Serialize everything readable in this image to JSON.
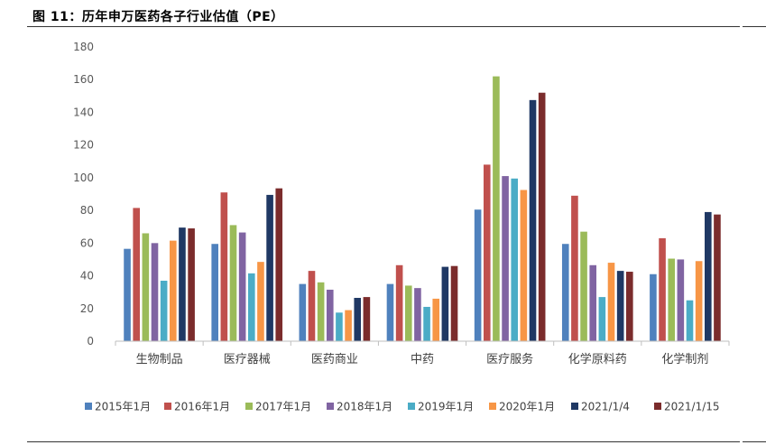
{
  "figure": {
    "title": "图 11：历年申万医药各子行业估值（PE）"
  },
  "chart_data": {
    "type": "bar",
    "title": "",
    "xlabel": "",
    "ylabel": "",
    "ylim": [
      0,
      180
    ],
    "yticks": [
      0,
      20,
      40,
      60,
      80,
      100,
      120,
      140,
      160,
      180
    ],
    "grid": false,
    "legend_position": "bottom",
    "categories": [
      "生物制品",
      "医疗器械",
      "医药商业",
      "中药",
      "医疗服务",
      "化学原料药",
      "化学制剂"
    ],
    "series": [
      {
        "name": "2015年1月",
        "color": "#4F81BD",
        "values": [
          56.5,
          59.5,
          35,
          35,
          80.5,
          59.5,
          41
        ]
      },
      {
        "name": "2016年1月",
        "color": "#C0504D",
        "values": [
          81.5,
          91,
          43,
          46.5,
          108,
          89,
          63
        ]
      },
      {
        "name": "2017年1月",
        "color": "#9BBB59",
        "values": [
          66,
          71,
          36,
          34,
          162,
          67,
          50.5
        ]
      },
      {
        "name": "2018年1月",
        "color": "#8064A2",
        "values": [
          60,
          66.5,
          31.5,
          32.5,
          101,
          46.5,
          50
        ]
      },
      {
        "name": "2019年1月",
        "color": "#4BACC6",
        "values": [
          37,
          41.5,
          17.5,
          21,
          99.5,
          27,
          25
        ]
      },
      {
        "name": "2020年1月",
        "color": "#F79646",
        "values": [
          61.5,
          48.5,
          19,
          26,
          92.5,
          48,
          49
        ]
      },
      {
        "name": "2021/1/4",
        "color": "#1F3864",
        "values": [
          69.5,
          89.5,
          26.5,
          45.5,
          147.5,
          43,
          79
        ]
      },
      {
        "name": "2021/1/15",
        "color": "#7B2C2C",
        "values": [
          69,
          93.5,
          27,
          46,
          152,
          42.5,
          77.5
        ]
      }
    ]
  }
}
